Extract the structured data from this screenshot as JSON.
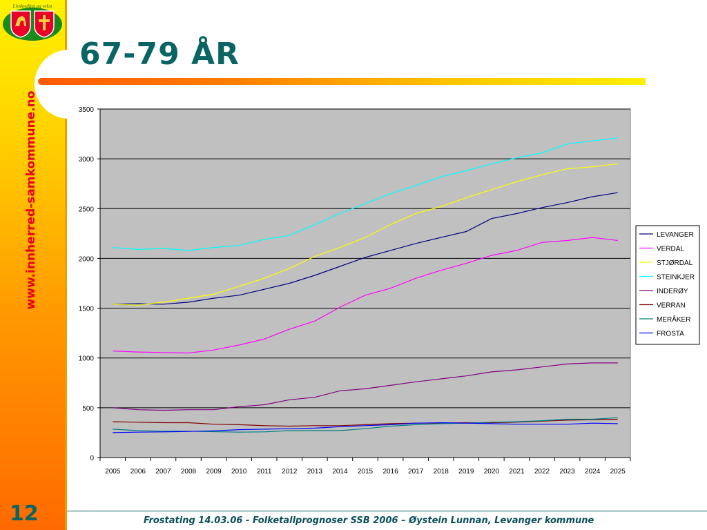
{
  "sidebar": {
    "logo_text": "Livskvalitet og vekst",
    "url": "www.innherred-samkommune.no",
    "page_number": "12"
  },
  "slide": {
    "title": "67-79 ÅR",
    "footer": "Frostating 14.03.06 - Folketallprognoser SSB 2006 – Øystein Lunnan, Levanger kommune"
  },
  "colors": {
    "title": "#0a6464",
    "plot_background": "#c0c0c0",
    "url_text": "#e8001c"
  },
  "chart_data": {
    "type": "line",
    "title": "",
    "xlabel": "",
    "ylabel": "",
    "ylim": [
      0,
      3500
    ],
    "yticks": [
      0,
      500,
      1000,
      1500,
      2000,
      2500,
      3000,
      3500
    ],
    "grid": "horizontal",
    "legend_position": "right",
    "x": [
      "2005",
      "2006",
      "2007",
      "2008",
      "2009",
      "2010",
      "2011",
      "2012",
      "2013",
      "2014",
      "2015",
      "2016",
      "2017",
      "2018",
      "2019",
      "2020",
      "2021",
      "2022",
      "2023",
      "2024",
      "2025"
    ],
    "series": [
      {
        "name": "LEVANGER",
        "color": "#000080",
        "values": [
          1540,
          1545,
          1540,
          1560,
          1600,
          1630,
          1690,
          1750,
          1830,
          1920,
          2010,
          2080,
          2150,
          2210,
          2270,
          2400,
          2450,
          2510,
          2560,
          2620,
          2660
        ]
      },
      {
        "name": "VERDAL",
        "color": "#ff00ff",
        "values": [
          1070,
          1060,
          1055,
          1050,
          1080,
          1130,
          1190,
          1290,
          1370,
          1510,
          1630,
          1700,
          1800,
          1880,
          1950,
          2030,
          2080,
          2160,
          2180,
          2210,
          2180
        ]
      },
      {
        "name": "STJØRDAL",
        "color": "#ffff00",
        "values": [
          1540,
          1530,
          1560,
          1600,
          1640,
          1720,
          1800,
          1900,
          2020,
          2110,
          2210,
          2340,
          2450,
          2520,
          2610,
          2690,
          2770,
          2840,
          2900,
          2920,
          2950
        ]
      },
      {
        "name": "STEINKJER",
        "color": "#00ffff",
        "values": [
          2110,
          2090,
          2100,
          2080,
          2110,
          2130,
          2190,
          2230,
          2340,
          2450,
          2550,
          2650,
          2730,
          2820,
          2880,
          2950,
          3010,
          3060,
          3150,
          3180,
          3210
        ]
      },
      {
        "name": "INDERØY",
        "color": "#800080",
        "values": [
          500,
          480,
          475,
          480,
          480,
          510,
          530,
          580,
          605,
          670,
          690,
          725,
          760,
          790,
          820,
          860,
          880,
          910,
          940,
          950,
          950
        ]
      },
      {
        "name": "VERRAN",
        "color": "#800000",
        "values": [
          360,
          355,
          350,
          350,
          335,
          330,
          320,
          315,
          320,
          320,
          330,
          340,
          345,
          345,
          350,
          350,
          355,
          365,
          375,
          380,
          385
        ]
      },
      {
        "name": "MERÅKER",
        "color": "#008080",
        "values": [
          285,
          270,
          265,
          265,
          260,
          255,
          258,
          270,
          270,
          270,
          290,
          315,
          330,
          340,
          345,
          355,
          360,
          370,
          385,
          385,
          400
        ]
      },
      {
        "name": "FROSTA",
        "color": "#0000ff",
        "values": [
          250,
          255,
          258,
          262,
          268,
          280,
          285,
          290,
          295,
          310,
          320,
          330,
          345,
          350,
          345,
          340,
          335,
          335,
          335,
          345,
          340
        ]
      }
    ]
  }
}
